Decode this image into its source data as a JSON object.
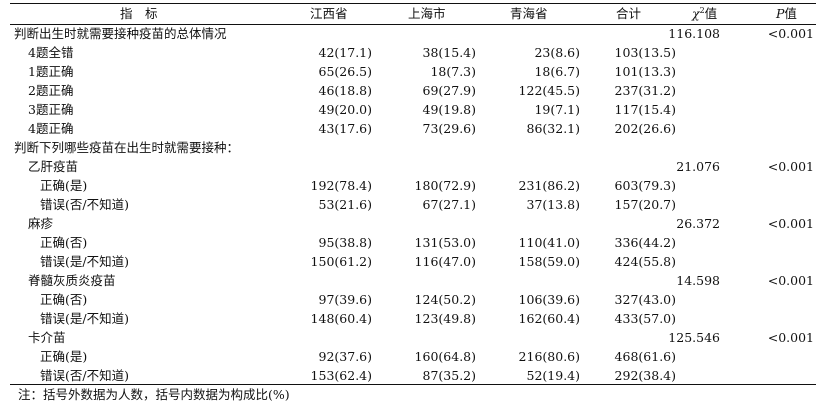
{
  "header": {
    "indicator": "指　标",
    "jiangxi": "江西省",
    "shanghai": "上海市",
    "qinghai": "青海省",
    "total": "合计",
    "chi_symbol": "χ",
    "chi_sup": "2",
    "chi_suffix": "值",
    "p_symbol": "P",
    "p_suffix": "值"
  },
  "rows": [
    {
      "label": "判断出生时就需要接种疫苗的总体情况",
      "level": 0,
      "jx": "",
      "sh": "",
      "qh": "",
      "hj": "",
      "chi": "116.108",
      "p": "<0.001"
    },
    {
      "label": "4题全错",
      "level": 1,
      "jx": "42(17.1)",
      "sh": "38(15.4)",
      "qh": "23(8.6)",
      "hj": "103(13.5)",
      "chi": "",
      "p": ""
    },
    {
      "label": "1题正确",
      "level": 1,
      "jx": "65(26.5)",
      "sh": "18(7.3)",
      "qh": "18(6.7)",
      "hj": "101(13.3)",
      "chi": "",
      "p": ""
    },
    {
      "label": "2题正确",
      "level": 1,
      "jx": "46(18.8)",
      "sh": "69(27.9)",
      "qh": "122(45.5)",
      "hj": "237(31.2)",
      "chi": "",
      "p": ""
    },
    {
      "label": "3题正确",
      "level": 1,
      "jx": "49(20.0)",
      "sh": "49(19.8)",
      "qh": "19(7.1)",
      "hj": "117(15.4)",
      "chi": "",
      "p": ""
    },
    {
      "label": "4题正确",
      "level": 1,
      "jx": "43(17.6)",
      "sh": "73(29.6)",
      "qh": "86(32.1)",
      "hj": "202(26.6)",
      "chi": "",
      "p": ""
    },
    {
      "label": "判断下列哪些疫苗在出生时就需要接种：",
      "level": 0,
      "jx": "",
      "sh": "",
      "qh": "",
      "hj": "",
      "chi": "",
      "p": ""
    },
    {
      "label": "乙肝疫苗",
      "level": 1,
      "jx": "",
      "sh": "",
      "qh": "",
      "hj": "",
      "chi": "21.076",
      "p": "<0.001"
    },
    {
      "label": "正确(是)",
      "level": 2,
      "jx": "192(78.4)",
      "sh": "180(72.9)",
      "qh": "231(86.2)",
      "hj": "603(79.3)",
      "chi": "",
      "p": ""
    },
    {
      "label": "错误(否/不知道)",
      "level": 2,
      "jx": "53(21.6)",
      "sh": "67(27.1)",
      "qh": "37(13.8)",
      "hj": "157(20.7)",
      "chi": "",
      "p": ""
    },
    {
      "label": "麻疹",
      "level": 1,
      "jx": "",
      "sh": "",
      "qh": "",
      "hj": "",
      "chi": "26.372",
      "p": "<0.001"
    },
    {
      "label": "正确(否)",
      "level": 2,
      "jx": "95(38.8)",
      "sh": "131(53.0)",
      "qh": "110(41.0)",
      "hj": "336(44.2)",
      "chi": "",
      "p": ""
    },
    {
      "label": "错误(是/不知道)",
      "level": 2,
      "jx": "150(61.2)",
      "sh": "116(47.0)",
      "qh": "158(59.0)",
      "hj": "424(55.8)",
      "chi": "",
      "p": ""
    },
    {
      "label": "脊髓灰质炎疫苗",
      "level": 1,
      "jx": "",
      "sh": "",
      "qh": "",
      "hj": "",
      "chi": "14.598",
      "p": "<0.001"
    },
    {
      "label": "正确(否)",
      "level": 2,
      "jx": "97(39.6)",
      "sh": "124(50.2)",
      "qh": "106(39.6)",
      "hj": "327(43.0)",
      "chi": "",
      "p": ""
    },
    {
      "label": "错误(是/不知道)",
      "level": 2,
      "jx": "148(60.4)",
      "sh": "123(49.8)",
      "qh": "162(60.4)",
      "hj": "433(57.0)",
      "chi": "",
      "p": ""
    },
    {
      "label": "卡介苗",
      "level": 1,
      "jx": "",
      "sh": "",
      "qh": "",
      "hj": "",
      "chi": "125.546",
      "p": "<0.001"
    },
    {
      "label": "正确(是)",
      "level": 2,
      "jx": "92(37.6)",
      "sh": "160(64.8)",
      "qh": "216(80.6)",
      "hj": "468(61.6)",
      "chi": "",
      "p": ""
    },
    {
      "label": "错误(否/不知道)",
      "level": 2,
      "jx": "153(62.4)",
      "sh": "87(35.2)",
      "qh": "52(19.4)",
      "hj": "292(38.4)",
      "chi": "",
      "p": ""
    }
  ],
  "note": "注：括号外数据为人数，括号内数据为构成比(%)"
}
